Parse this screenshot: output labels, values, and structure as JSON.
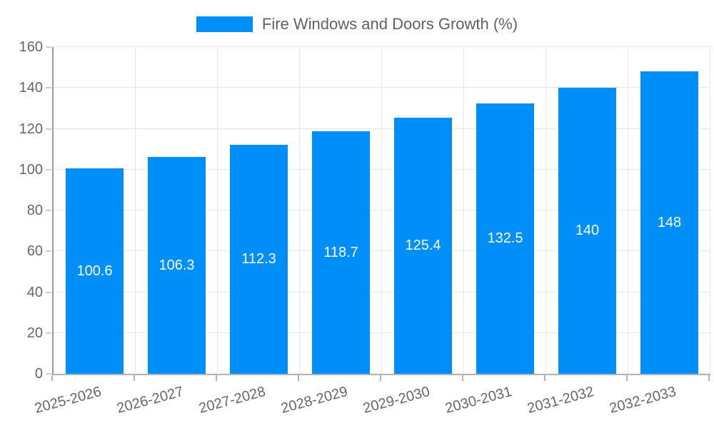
{
  "legend": {
    "label": "Fire Windows and Doors Growth (%)"
  },
  "chart_data": {
    "type": "bar",
    "title": "Fire Windows and Doors Growth (%)",
    "categories": [
      "2025-2026",
      "2026-2027",
      "2027-2028",
      "2028-2029",
      "2029-2030",
      "2030-2031",
      "2031-2032",
      "2032-2033"
    ],
    "series": [
      {
        "name": "Fire Windows and Doors Growth (%)",
        "values": [
          100.6,
          106.3,
          112.3,
          118.7,
          125.4,
          132.5,
          140,
          148
        ]
      }
    ],
    "value_labels": [
      "100.6",
      "106.3",
      "112.3",
      "118.7",
      "125.4",
      "132.5",
      "140",
      "148"
    ],
    "xlabel": "",
    "ylabel": "",
    "ylim": [
      0,
      160
    ],
    "yticks": [
      0,
      20,
      40,
      60,
      80,
      100,
      120,
      140,
      160
    ],
    "grid": true,
    "legend_position": "top",
    "x_tick_rotation_deg": -15,
    "bar_width_fraction": 0.7,
    "colors": {
      "bar": "#008FF8",
      "value_label": "#ffffff",
      "axis_text": "#666666",
      "legend_text": "#616161",
      "gridline": "#e6e6e6",
      "y_axis_line": "#999999",
      "x_axis_line": "#b3b3b3",
      "tick": "#cccccc"
    }
  }
}
